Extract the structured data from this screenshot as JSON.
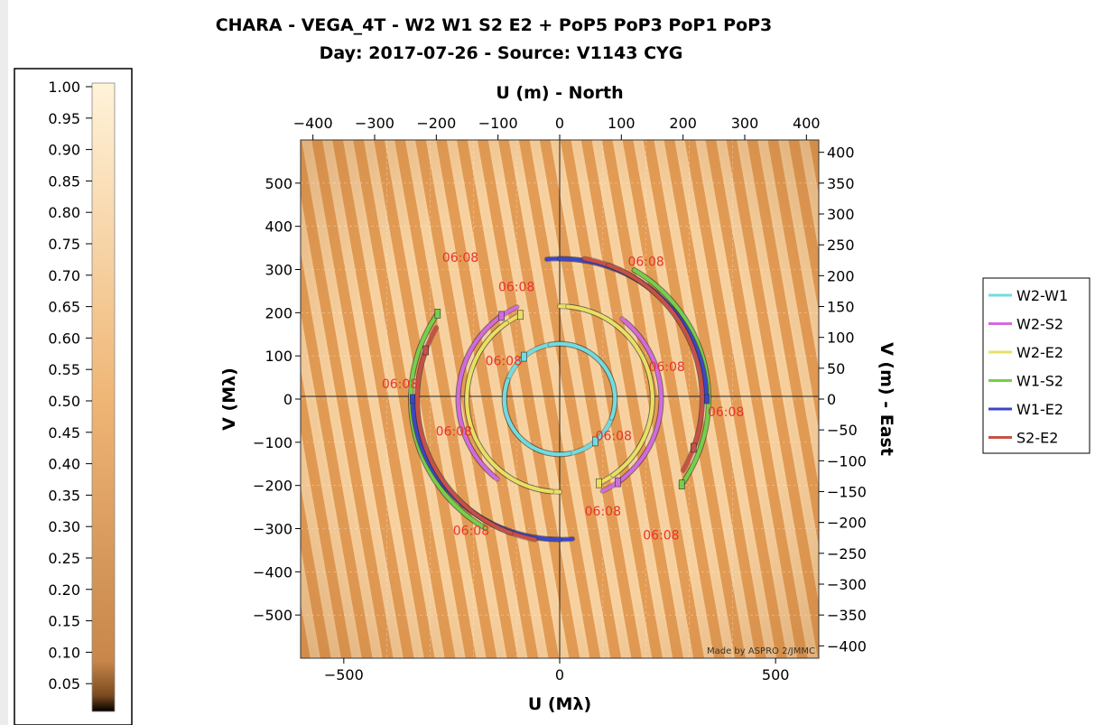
{
  "chart_data": {
    "type": "uv-coverage",
    "title": "CHARA - VEGA_4T - W2 W1 S2 E2 + PoP5 PoP3 PoP1 PoP3",
    "subtitle": "Day: 2017-07-26 - Source: V1143 CYG",
    "xlabel": "U (Mλ)",
    "ylabel": "V (Mλ)",
    "top_axis_label": "U (m) - North",
    "right_axis_label": "V (m) - East",
    "xlim": [
      -600,
      600
    ],
    "ylim": [
      -600,
      600
    ],
    "x_ticks": [
      -500,
      0,
      500
    ],
    "y_ticks": [
      -500,
      -400,
      -300,
      -200,
      -100,
      0,
      100,
      200,
      300,
      400,
      500
    ],
    "top_ticks": [
      -400,
      -300,
      -200,
      -100,
      0,
      100,
      200,
      300,
      400
    ],
    "right_ticks": [
      -400,
      -350,
      -300,
      -250,
      -200,
      -150,
      -100,
      -50,
      0,
      50,
      100,
      150,
      200,
      250,
      300,
      350,
      400
    ],
    "meters_per_mlambda": 0.7,
    "colorbar": {
      "ticks": [
        "1.00",
        "0.95",
        "0.90",
        "0.85",
        "0.80",
        "0.75",
        "0.70",
        "0.65",
        "0.60",
        "0.55",
        "0.50",
        "0.45",
        "0.40",
        "0.35",
        "0.30",
        "0.25",
        "0.20",
        "0.15",
        "0.10",
        "0.05"
      ],
      "range": [
        0,
        1
      ],
      "colors": [
        "#000000",
        "#c8864a",
        "#fff3d9"
      ]
    },
    "legend": {
      "placement": "right"
    },
    "series": [
      {
        "name": "W2-W1",
        "color": "#6fdde2",
        "a": 128,
        "b": 128,
        "rot": 0,
        "arcs": [
          [
            -50,
            130
          ],
          [
            160,
            280
          ]
        ],
        "start_deg": -50
      },
      {
        "name": "W2-S2",
        "color": "#d26ae0",
        "a": 235,
        "b": 235,
        "rot": 0,
        "arcs": [
          [
            -55,
            50
          ],
          [
            115,
            232
          ]
        ],
        "start_deg": -55
      },
      {
        "name": "W2-E2",
        "color": "#e8e064",
        "a": 215,
        "b": 215,
        "rot": -10,
        "arcs": [
          [
            -55,
            100
          ],
          [
            135,
            275
          ]
        ],
        "start_deg": -55
      },
      {
        "name": "W1-S2",
        "color": "#74d04a",
        "a": 345,
        "b": 345,
        "rot": 0,
        "arcs": [
          [
            -35,
            60
          ],
          [
            145,
            240
          ]
        ],
        "start_deg": -35
      },
      {
        "name": "W1-E2",
        "color": "#3c46c8",
        "a": 340,
        "b": 325,
        "rot": 0,
        "arcs": [
          [
            0,
            95
          ],
          [
            180,
            270
          ]
        ],
        "start_deg": 0
      },
      {
        "name": "S2-E2",
        "color": "#c85046",
        "a": 330,
        "b": 330,
        "rot": 0,
        "arcs": [
          [
            -20,
            80
          ],
          [
            150,
            250
          ]
        ],
        "start_deg": -20
      }
    ],
    "time_labels": [
      {
        "text": "06:08",
        "u": -230,
        "v": 318
      },
      {
        "text": "06:08",
        "u": 200,
        "v": 308
      },
      {
        "text": "06:08",
        "u": -100,
        "v": 250
      },
      {
        "text": "06:08",
        "u": -130,
        "v": 78
      },
      {
        "text": "06:08",
        "u": 248,
        "v": 65
      },
      {
        "text": "06:08",
        "u": -370,
        "v": 25
      },
      {
        "text": "06:08",
        "u": 385,
        "v": -40
      },
      {
        "text": "06:08",
        "u": -245,
        "v": -85
      },
      {
        "text": "06:08",
        "u": 125,
        "v": -95
      },
      {
        "text": "06:08",
        "u": 100,
        "v": -270
      },
      {
        "text": "06:08",
        "u": -205,
        "v": -315
      },
      {
        "text": "06:08",
        "u": 235,
        "v": -325
      }
    ],
    "credit": "Made by ASPRO 2/JMMC"
  }
}
